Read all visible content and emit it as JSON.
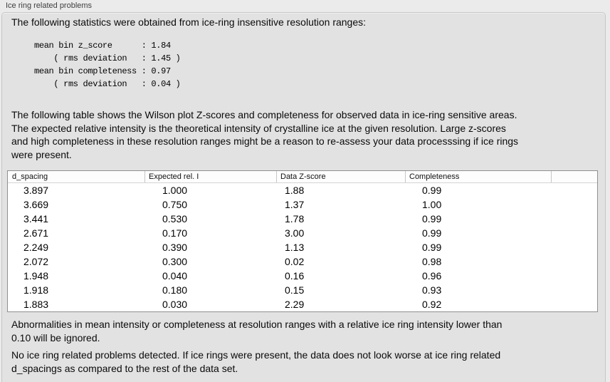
{
  "panel": {
    "label": "Ice ring related problems"
  },
  "intro_text": "The following statistics were obtained from ice-ring insensitive resolution ranges:",
  "stats_lines": [
    "mean bin z_score      : 1.84",
    "    ( rms deviation   : 1.45 )",
    "mean bin completeness : 0.97",
    "    ( rms deviation   : 0.04 )"
  ],
  "description_lines": [
    "The following table shows the Wilson plot Z-scores and completeness for observed data in ice-ring sensitive areas.",
    "The expected relative intensity is the theoretical intensity of crystalline ice at the given resolution. Large z-scores",
    "and high completeness in these resolution ranges might be a reason to re-assess your data processsing if ice rings",
    "were present."
  ],
  "table": {
    "columns": [
      "d_spacing",
      "Expected rel. I",
      "Data Z-score",
      "Completeness",
      ""
    ],
    "rows": [
      [
        "3.897",
        "1.000",
        "1.88",
        "0.99"
      ],
      [
        "3.669",
        "0.750",
        "1.37",
        "1.00"
      ],
      [
        "3.441",
        "0.530",
        "1.78",
        "0.99"
      ],
      [
        "2.671",
        "0.170",
        "3.00",
        "0.99"
      ],
      [
        "2.249",
        "0.390",
        "1.13",
        "0.99"
      ],
      [
        "2.072",
        "0.300",
        "0.02",
        "0.98"
      ],
      [
        "1.948",
        "0.040",
        "0.16",
        "0.96"
      ],
      [
        "1.918",
        "0.180",
        "0.15",
        "0.93"
      ],
      [
        "1.883",
        "0.030",
        "2.29",
        "0.92"
      ]
    ]
  },
  "ignore_note_lines": [
    "Abnormalities in mean intensity or completeness at resolution ranges with a relative ice ring intensity lower than",
    "0.10 will be ignored."
  ],
  "conclusion_lines": [
    "No ice ring related problems detected. If ice rings were present, the data does not look worse at ice ring related",
    "d_spacings as compared to the rest of the data set."
  ],
  "colors": {
    "panel_background": "#e2e2e2",
    "page_background": "#ebebeb",
    "table_background": "#ffffff",
    "table_border": "#8f8f8f",
    "text": "#0a0a0a"
  }
}
